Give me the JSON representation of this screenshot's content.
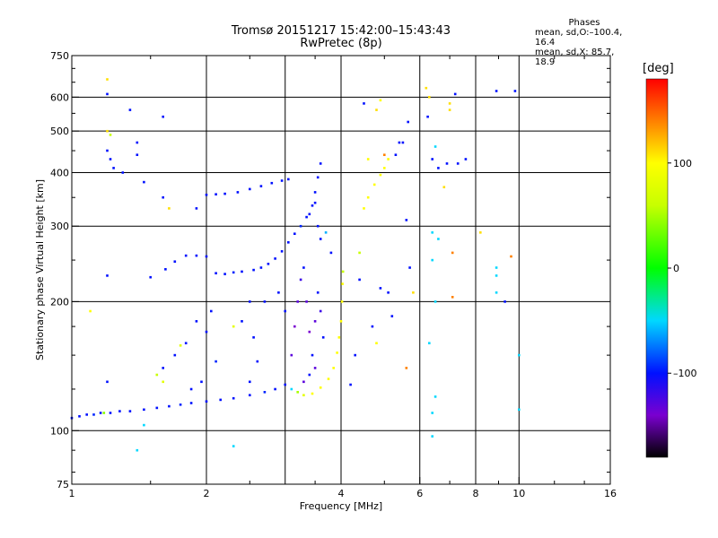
{
  "header": {
    "title_line1": "Tromsø 20151217 15:42:00–15:43:43",
    "title_line2": "RwPretec (8p)"
  },
  "phases_box": {
    "title": "Phases",
    "line1": "mean, sd,O:–100.4, 16.4",
    "line2": "mean, sd,X:  85.7, 18.9"
  },
  "colorbar": {
    "unit_label": "[deg]",
    "range": [
      -180,
      180
    ],
    "ticks": [
      {
        "value": 100,
        "label": "100"
      },
      {
        "value": 0,
        "label": "0"
      },
      {
        "value": -100,
        "label": "–100"
      }
    ],
    "colors": [
      {
        "value": -180,
        "color": "#000000"
      },
      {
        "value": -140,
        "color": "#7a00d0"
      },
      {
        "value": -100,
        "color": "#0010ff"
      },
      {
        "value": -50,
        "color": "#00d8ff"
      },
      {
        "value": 0,
        "color": "#00ff00"
      },
      {
        "value": 60,
        "color": "#c8ff00"
      },
      {
        "value": 100,
        "color": "#ffff00"
      },
      {
        "value": 140,
        "color": "#ff8000"
      },
      {
        "value": 180,
        "color": "#ff0000"
      }
    ]
  },
  "chart_data": {
    "type": "scatter",
    "xlabel": "Frequency [MHz]",
    "ylabel": "Stationary phase Virtual Height [km]",
    "x_scale": "log",
    "y_scale": "log",
    "xlim": [
      1,
      16
    ],
    "ylim": [
      75,
      750
    ],
    "x_ticks": [
      {
        "value": 1,
        "label": "1"
      },
      {
        "value": 2,
        "label": "2"
      },
      {
        "value": 4,
        "label": "4"
      },
      {
        "value": 6,
        "label": "6"
      },
      {
        "value": 8,
        "label": "8"
      },
      {
        "value": 10,
        "label": "10"
      },
      {
        "value": 16,
        "label": "16"
      }
    ],
    "x_gridlines": [
      1,
      2,
      3,
      4,
      6,
      8,
      10,
      16
    ],
    "x_minor_ticks": [
      1.5,
      2.5,
      3.5,
      5,
      7,
      9,
      12,
      14
    ],
    "y_ticks": [
      {
        "value": 75,
        "label": "75"
      },
      {
        "value": 100,
        "label": "100"
      },
      {
        "value": 200,
        "label": "200"
      },
      {
        "value": 300,
        "label": "300"
      },
      {
        "value": 400,
        "label": "400"
      },
      {
        "value": 500,
        "label": "500"
      },
      {
        "value": 600,
        "label": "600"
      },
      {
        "value": 750,
        "label": "750"
      }
    ],
    "y_gridlines": [
      100,
      200,
      300,
      400,
      500,
      600
    ],
    "y_minor_ticks": [
      80,
      90,
      125,
      150,
      175,
      250,
      350,
      450,
      550,
      650,
      700
    ],
    "grid": true,
    "series": [
      {
        "points": [
          [
            1.0,
            107,
            -100
          ],
          [
            1.04,
            108,
            -100
          ],
          [
            1.08,
            109,
            -100
          ],
          [
            1.12,
            109,
            -95
          ],
          [
            1.16,
            110,
            -100
          ],
          [
            1.18,
            110,
            40
          ],
          [
            1.22,
            110,
            -100
          ],
          [
            1.28,
            111,
            -100
          ],
          [
            1.35,
            111,
            -100
          ],
          [
            1.45,
            112,
            -100
          ],
          [
            1.55,
            113,
            -100
          ],
          [
            1.65,
            114,
            -100
          ],
          [
            1.75,
            115,
            -95
          ],
          [
            1.85,
            116,
            -100
          ],
          [
            2.0,
            117,
            -100
          ],
          [
            2.15,
            118,
            -100
          ],
          [
            2.3,
            119,
            -100
          ],
          [
            2.5,
            121,
            -100
          ],
          [
            2.7,
            123,
            -95
          ],
          [
            2.85,
            125,
            -100
          ],
          [
            3.0,
            128,
            -100
          ]
        ]
      },
      {
        "points": [
          [
            2.1,
            233,
            -100
          ],
          [
            2.2,
            232,
            -100
          ],
          [
            2.3,
            234,
            -95
          ],
          [
            2.4,
            235,
            -100
          ],
          [
            2.55,
            237,
            -100
          ],
          [
            2.65,
            240,
            -100
          ],
          [
            2.75,
            245,
            -100
          ],
          [
            2.85,
            252,
            -100
          ],
          [
            2.95,
            262,
            -100
          ],
          [
            3.05,
            275,
            -100
          ],
          [
            3.15,
            288,
            -100
          ],
          [
            3.25,
            300,
            -95
          ],
          [
            3.35,
            315,
            -100
          ],
          [
            3.45,
            335,
            -100
          ],
          [
            3.5,
            360,
            -100
          ],
          [
            3.55,
            390,
            -100
          ],
          [
            3.6,
            420,
            -100
          ],
          [
            1.5,
            228,
            -100
          ],
          [
            1.62,
            238,
            -100
          ],
          [
            1.7,
            248,
            -100
          ],
          [
            1.8,
            256,
            -100
          ],
          [
            1.9,
            256,
            -100
          ],
          [
            2.0,
            255,
            -100
          ]
        ]
      },
      {
        "points": [
          [
            2.0,
            355,
            -100
          ],
          [
            2.1,
            356,
            -100
          ],
          [
            2.2,
            357,
            -100
          ],
          [
            2.35,
            360,
            -100
          ],
          [
            2.5,
            366,
            -100
          ],
          [
            2.65,
            372,
            -100
          ],
          [
            2.8,
            378,
            -100
          ],
          [
            2.95,
            383,
            -100
          ],
          [
            3.05,
            386,
            -100
          ]
        ]
      },
      {
        "points": [
          [
            3.1,
            125,
            -50
          ],
          [
            3.2,
            123,
            50
          ],
          [
            3.3,
            121,
            80
          ],
          [
            3.45,
            122,
            100
          ],
          [
            3.6,
            126,
            100
          ],
          [
            3.75,
            132,
            100
          ],
          [
            3.85,
            140,
            100
          ],
          [
            3.92,
            152,
            100
          ],
          [
            3.96,
            165,
            100
          ],
          [
            4.0,
            180,
            100
          ],
          [
            4.02,
            200,
            100
          ],
          [
            4.03,
            220,
            100
          ],
          [
            4.04,
            235,
            60
          ],
          [
            4.5,
            330,
            100
          ],
          [
            4.6,
            350,
            100
          ],
          [
            4.75,
            375,
            100
          ],
          [
            4.9,
            395,
            100
          ],
          [
            5.0,
            410,
            100
          ],
          [
            5.1,
            430,
            100
          ]
        ]
      },
      {
        "points": [
          [
            3.1,
            150,
            -130
          ],
          [
            3.15,
            175,
            -140
          ],
          [
            3.2,
            200,
            -130
          ],
          [
            3.25,
            225,
            -120
          ],
          [
            3.3,
            240,
            -100
          ],
          [
            3.35,
            200,
            -130
          ],
          [
            3.4,
            170,
            -140
          ],
          [
            3.45,
            150,
            -100
          ],
          [
            3.5,
            180,
            -130
          ],
          [
            3.55,
            210,
            -100
          ],
          [
            3.6,
            190,
            -120
          ],
          [
            3.65,
            165,
            -100
          ],
          [
            3.4,
            320,
            -100
          ],
          [
            3.5,
            340,
            -100
          ],
          [
            3.55,
            300,
            -100
          ],
          [
            3.6,
            280,
            -100
          ],
          [
            3.7,
            290,
            -60
          ],
          [
            3.8,
            260,
            -100
          ],
          [
            3.3,
            130,
            -130
          ],
          [
            3.4,
            135,
            -100
          ],
          [
            3.5,
            140,
            -130
          ]
        ]
      },
      {
        "points": [
          [
            1.6,
            140,
            -100
          ],
          [
            1.7,
            150,
            -100
          ],
          [
            1.8,
            160,
            -100
          ],
          [
            1.9,
            180,
            -100
          ],
          [
            2.0,
            170,
            -100
          ],
          [
            2.05,
            190,
            -100
          ],
          [
            1.95,
            130,
            -100
          ],
          [
            1.85,
            125,
            -100
          ],
          [
            2.4,
            180,
            -100
          ],
          [
            2.5,
            200,
            -100
          ],
          [
            2.55,
            165,
            -100
          ],
          [
            2.6,
            145,
            -100
          ],
          [
            2.5,
            130,
            -100
          ],
          [
            2.7,
            200,
            -100
          ],
          [
            2.9,
            210,
            -100
          ],
          [
            3.0,
            190,
            -100
          ],
          [
            2.1,
            145,
            -95
          ],
          [
            1.75,
            158,
            80
          ],
          [
            1.55,
            135,
            60
          ],
          [
            1.6,
            130,
            80
          ],
          [
            2.3,
            175,
            80
          ]
        ]
      },
      {
        "points": [
          [
            1.2,
            660,
            110
          ],
          [
            1.2,
            610,
            -100
          ],
          [
            1.2,
            500,
            110
          ],
          [
            1.22,
            490,
            60
          ],
          [
            1.2,
            450,
            -100
          ],
          [
            1.22,
            430,
            -100
          ],
          [
            1.24,
            410,
            -100
          ],
          [
            1.35,
            560,
            -100
          ],
          [
            1.4,
            470,
            -100
          ],
          [
            1.4,
            440,
            -100
          ],
          [
            1.3,
            400,
            -100
          ],
          [
            1.45,
            380,
            -100
          ],
          [
            1.6,
            540,
            -100
          ],
          [
            1.6,
            350,
            -100
          ],
          [
            1.2,
            230,
            -100
          ],
          [
            1.2,
            130,
            -100
          ],
          [
            1.1,
            190,
            100
          ],
          [
            1.4,
            90,
            -50
          ],
          [
            2.3,
            92,
            -50
          ],
          [
            1.45,
            103,
            -50
          ],
          [
            1.65,
            330,
            110
          ],
          [
            1.9,
            330,
            -100
          ],
          [
            4.4,
            260,
            60
          ],
          [
            4.4,
            225,
            -100
          ],
          [
            4.5,
            580,
            -100
          ],
          [
            4.6,
            430,
            100
          ],
          [
            4.8,
            560,
            110
          ],
          [
            4.9,
            590,
            100
          ],
          [
            5.0,
            440,
            140
          ],
          [
            5.3,
            440,
            -100
          ],
          [
            5.4,
            470,
            -100
          ],
          [
            5.5,
            470,
            -100
          ],
          [
            5.6,
            310,
            -100
          ],
          [
            5.65,
            525,
            -100
          ],
          [
            5.7,
            240,
            -100
          ],
          [
            5.8,
            210,
            110
          ],
          [
            6.2,
            630,
            110
          ],
          [
            6.3,
            600,
            110
          ],
          [
            6.25,
            540,
            -100
          ],
          [
            6.4,
            430,
            -100
          ],
          [
            6.5,
            460,
            -50
          ],
          [
            6.6,
            410,
            -100
          ],
          [
            6.4,
            290,
            -50
          ],
          [
            6.6,
            280,
            -50
          ],
          [
            6.4,
            250,
            -50
          ],
          [
            6.8,
            370,
            110
          ],
          [
            6.5,
            200,
            -50
          ],
          [
            6.3,
            160,
            -50
          ],
          [
            6.4,
            110,
            -50
          ],
          [
            6.5,
            120,
            -50
          ],
          [
            6.4,
            97,
            -50
          ],
          [
            6.9,
            420,
            -100
          ],
          [
            7.0,
            580,
            110
          ],
          [
            7.0,
            560,
            110
          ],
          [
            7.1,
            260,
            140
          ],
          [
            7.1,
            205,
            140
          ],
          [
            7.2,
            610,
            -100
          ],
          [
            7.3,
            420,
            -100
          ],
          [
            7.6,
            430,
            -100
          ],
          [
            8.2,
            290,
            110
          ],
          [
            8.9,
            240,
            -50
          ],
          [
            8.9,
            230,
            -50
          ],
          [
            8.9,
            210,
            -50
          ],
          [
            8.9,
            620,
            -100
          ],
          [
            9.3,
            200,
            -100
          ],
          [
            9.6,
            255,
            140
          ],
          [
            9.8,
            620,
            -100
          ],
          [
            10.0,
            150,
            -50
          ],
          [
            10.0,
            112,
            -50
          ],
          [
            5.6,
            140,
            140
          ],
          [
            5.2,
            185,
            -100
          ],
          [
            5.1,
            210,
            -100
          ],
          [
            4.9,
            215,
            -100
          ],
          [
            4.7,
            175,
            -100
          ],
          [
            4.8,
            160,
            100
          ],
          [
            4.2,
            128,
            -100
          ],
          [
            4.3,
            150,
            -100
          ]
        ]
      }
    ]
  }
}
